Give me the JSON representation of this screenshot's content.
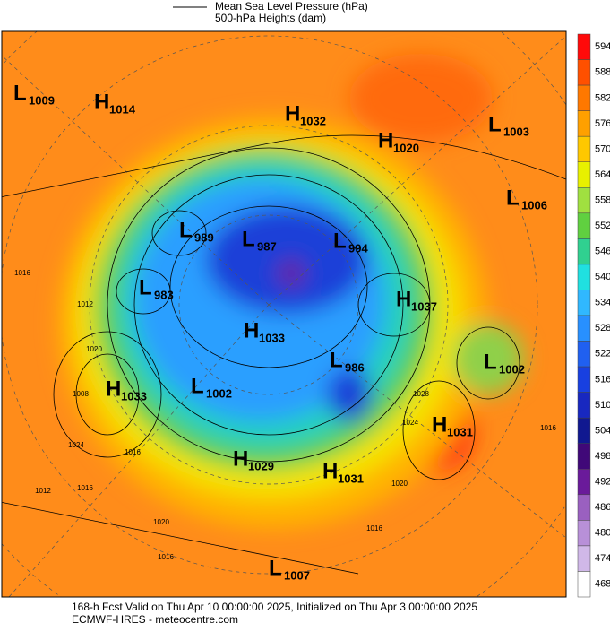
{
  "header": {
    "legend": [
      "Mean Sea Level Pressure (hPa)",
      "500-hPa Heights (dam)"
    ]
  },
  "colorbar": {
    "labels": [
      594,
      588,
      582,
      576,
      570,
      564,
      558,
      552,
      546,
      540,
      534,
      528,
      522,
      516,
      510,
      504,
      498,
      492,
      486,
      480,
      474,
      468
    ]
  },
  "centers": [
    {
      "kind": "L",
      "value": 1009
    },
    {
      "kind": "H",
      "value": 1014
    },
    {
      "kind": "H",
      "value": 1032
    },
    {
      "kind": "H",
      "value": 1020
    },
    {
      "kind": "L",
      "value": 1003
    },
    {
      "kind": "L",
      "value": 1006
    },
    {
      "kind": "L",
      "value": 989
    },
    {
      "kind": "L",
      "value": 987
    },
    {
      "kind": "L",
      "value": 994
    },
    {
      "kind": "L",
      "value": 983
    },
    {
      "kind": "H",
      "value": 1037
    },
    {
      "kind": "H",
      "value": 1033
    },
    {
      "kind": "L",
      "value": 986
    },
    {
      "kind": "L",
      "value": 1002
    },
    {
      "kind": "H",
      "value": 1033
    },
    {
      "kind": "L",
      "value": 1002
    },
    {
      "kind": "H",
      "value": 1031
    },
    {
      "kind": "H",
      "value": 1029
    },
    {
      "kind": "H",
      "value": 1031
    },
    {
      "kind": "L",
      "value": 1007
    }
  ],
  "isobar_labels": [
    1016,
    1012,
    1020,
    1008,
    1024,
    1016,
    1012,
    1016,
    1020,
    1016,
    1028,
    1024,
    1020,
    1016,
    1016
  ],
  "footer": {
    "line1": "168-h Fcst Valid on Thu Apr 10 00:00:00 2025, Initialized on Thu Apr 3 00:00:00 2025",
    "line2": "ECMWF-HRES - meteocentre.com"
  }
}
